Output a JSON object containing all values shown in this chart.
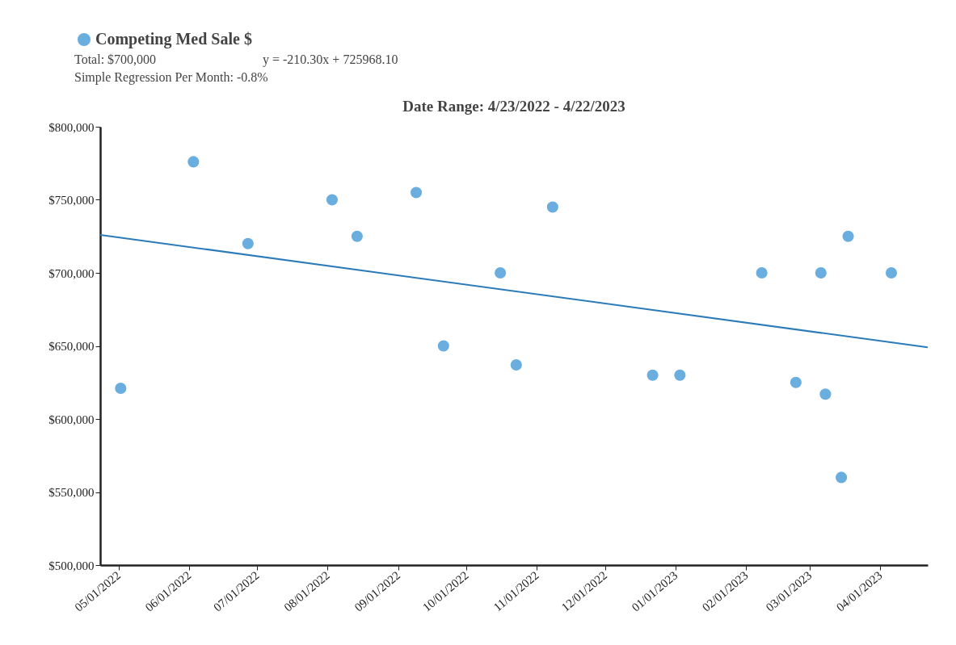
{
  "chart_data": {
    "type": "scatter",
    "title": "Date Range: 4/23/2022 - 4/22/2023",
    "annotations": [
      "Total: $700,000",
      "y = -210.30x + 725968.10",
      "Simple Regression Per Month: -0.8%"
    ],
    "xlim": [
      "2022-04-23",
      "2023-04-22"
    ],
    "xticks": [
      {
        "value": "2022-05-01",
        "label": "05/01/2022"
      },
      {
        "value": "2022-06-01",
        "label": "06/01/2022"
      },
      {
        "value": "2022-07-01",
        "label": "07/01/2022"
      },
      {
        "value": "2022-08-01",
        "label": "08/01/2022"
      },
      {
        "value": "2022-09-01",
        "label": "09/01/2022"
      },
      {
        "value": "2022-10-01",
        "label": "10/01/2022"
      },
      {
        "value": "2022-11-01",
        "label": "11/01/2022"
      },
      {
        "value": "2022-12-01",
        "label": "12/01/2022"
      },
      {
        "value": "2023-01-01",
        "label": "01/01/2023"
      },
      {
        "value": "2023-02-01",
        "label": "02/01/2023"
      },
      {
        "value": "2023-03-01",
        "label": "03/01/2023"
      },
      {
        "value": "2023-04-01",
        "label": "04/01/2023"
      }
    ],
    "ylim": [
      500000,
      800000
    ],
    "yticks": [
      {
        "value": 500000,
        "label": "$500,000"
      },
      {
        "value": 550000,
        "label": "$550,000"
      },
      {
        "value": 600000,
        "label": "$600,000"
      },
      {
        "value": 650000,
        "label": "$650,000"
      },
      {
        "value": 700000,
        "label": "$700,000"
      },
      {
        "value": 750000,
        "label": "$750,000"
      },
      {
        "value": 800000,
        "label": "$800,000"
      }
    ],
    "legend": "top left",
    "series": [
      {
        "name": "Competing Med Sale $",
        "marker": "circle",
        "color": "#6aaee0",
        "x": [
          "2022-05-02",
          "2022-06-03",
          "2022-06-27",
          "2022-08-03",
          "2022-08-14",
          "2022-09-09",
          "2022-09-21",
          "2022-10-16",
          "2022-10-23",
          "2022-11-08",
          "2022-12-22",
          "2023-01-03",
          "2023-02-08",
          "2023-02-23",
          "2023-03-06",
          "2023-03-08",
          "2023-03-15",
          "2023-03-18",
          "2023-04-06"
        ],
        "values": [
          621000,
          776000,
          720000,
          750000,
          725000,
          755000,
          650000,
          700000,
          637000,
          745000,
          630000,
          630000,
          700000,
          625000,
          700000,
          617000,
          560000,
          725000,
          700000
        ]
      },
      {
        "type": "line",
        "color": "#2b7bb9",
        "line_style": "solid",
        "x": [
          "2022-04-23",
          "2023-04-22"
        ],
        "values": [
          726000,
          649000
        ]
      }
    ]
  }
}
